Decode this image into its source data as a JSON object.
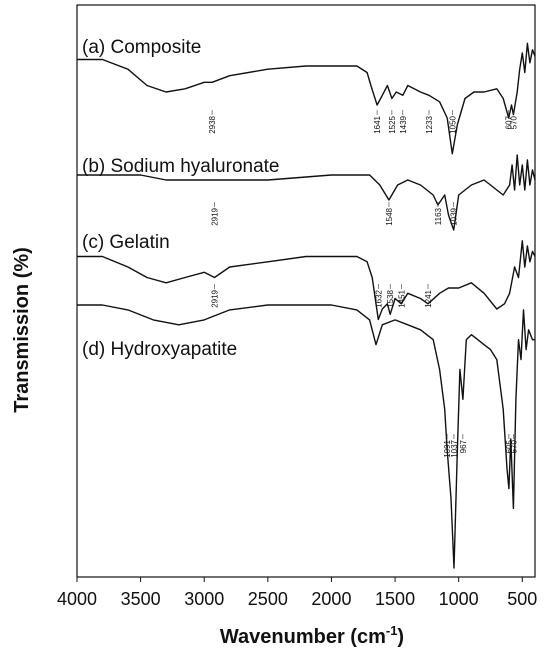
{
  "chart_data": {
    "type": "line",
    "xlabel": "Wavenumber (cm",
    "xlabel_sup": "-1",
    "xlabel_close": ")",
    "ylabel": "Transmission (%)",
    "x_ticks": [
      "4000",
      "3500",
      "3000",
      "2500",
      "2000",
      "1500",
      "1000",
      "500"
    ],
    "xlim": [
      4000,
      400
    ],
    "x_reversed": true,
    "y_ticks_shown": false,
    "grid": false,
    "legend": "none",
    "series": [
      {
        "name": "(a) Composite",
        "peaks": [
          "2938",
          "1641",
          "1525",
          "1439",
          "1233",
          "1050",
          "607",
          "570"
        ],
        "peak_positions": [
          2938,
          1641,
          1525,
          1439,
          1233,
          1050,
          607,
          570
        ],
        "points": [
          [
            4000,
            0.84
          ],
          [
            3800,
            0.84
          ],
          [
            3600,
            0.81
          ],
          [
            3450,
            0.76
          ],
          [
            3300,
            0.74
          ],
          [
            3150,
            0.75
          ],
          [
            3000,
            0.77
          ],
          [
            2938,
            0.77
          ],
          [
            2800,
            0.79
          ],
          [
            2500,
            0.81
          ],
          [
            2200,
            0.82
          ],
          [
            2000,
            0.82
          ],
          [
            1800,
            0.82
          ],
          [
            1720,
            0.8
          ],
          [
            1690,
            0.76
          ],
          [
            1641,
            0.7
          ],
          [
            1600,
            0.73
          ],
          [
            1560,
            0.76
          ],
          [
            1525,
            0.72
          ],
          [
            1490,
            0.74
          ],
          [
            1439,
            0.73
          ],
          [
            1400,
            0.76
          ],
          [
            1300,
            0.74
          ],
          [
            1233,
            0.73
          ],
          [
            1150,
            0.71
          ],
          [
            1090,
            0.66
          ],
          [
            1050,
            0.55
          ],
          [
            1010,
            0.64
          ],
          [
            950,
            0.72
          ],
          [
            880,
            0.74
          ],
          [
            800,
            0.74
          ],
          [
            700,
            0.75
          ],
          [
            650,
            0.72
          ],
          [
            607,
            0.66
          ],
          [
            585,
            0.7
          ],
          [
            570,
            0.67
          ],
          [
            540,
            0.74
          ],
          [
            520,
            0.81
          ],
          [
            500,
            0.86
          ],
          [
            480,
            0.8
          ],
          [
            460,
            0.89
          ],
          [
            440,
            0.83
          ],
          [
            420,
            0.87
          ],
          [
            400,
            0.85
          ]
        ]
      },
      {
        "name": "(b) Sodium hyaluronate",
        "peaks": [
          "2919",
          "1548",
          "1163",
          "1039"
        ],
        "peak_positions": [
          2919,
          1548,
          1163,
          1039
        ],
        "points": [
          [
            4000,
            0.51
          ],
          [
            3500,
            0.51
          ],
          [
            3300,
            0.5
          ],
          [
            2919,
            0.5
          ],
          [
            2500,
            0.5
          ],
          [
            2000,
            0.51
          ],
          [
            1700,
            0.51
          ],
          [
            1620,
            0.49
          ],
          [
            1548,
            0.46
          ],
          [
            1480,
            0.49
          ],
          [
            1400,
            0.5
          ],
          [
            1300,
            0.49
          ],
          [
            1200,
            0.47
          ],
          [
            1163,
            0.45
          ],
          [
            1110,
            0.47
          ],
          [
            1080,
            0.43
          ],
          [
            1039,
            0.4
          ],
          [
            1000,
            0.47
          ],
          [
            900,
            0.49
          ],
          [
            800,
            0.5
          ],
          [
            700,
            0.48
          ],
          [
            650,
            0.47
          ],
          [
            600,
            0.49
          ],
          [
            580,
            0.53
          ],
          [
            560,
            0.48
          ],
          [
            540,
            0.55
          ],
          [
            520,
            0.49
          ],
          [
            500,
            0.53
          ],
          [
            480,
            0.48
          ],
          [
            460,
            0.54
          ],
          [
            440,
            0.49
          ],
          [
            420,
            0.52
          ],
          [
            400,
            0.5
          ]
        ]
      },
      {
        "name": "(c) Gelatin",
        "peaks": [
          "2919",
          "1632",
          "1538",
          "1451",
          "1241"
        ],
        "peak_positions": [
          2919,
          1632,
          1538,
          1451,
          1241
        ],
        "points": [
          [
            4000,
            0.42
          ],
          [
            3800,
            0.42
          ],
          [
            3600,
            0.4
          ],
          [
            3450,
            0.38
          ],
          [
            3300,
            0.37
          ],
          [
            3150,
            0.38
          ],
          [
            3000,
            0.39
          ],
          [
            2919,
            0.38
          ],
          [
            2800,
            0.4
          ],
          [
            2500,
            0.41
          ],
          [
            2200,
            0.42
          ],
          [
            2000,
            0.42
          ],
          [
            1800,
            0.42
          ],
          [
            1720,
            0.41
          ],
          [
            1680,
            0.38
          ],
          [
            1632,
            0.3
          ],
          [
            1600,
            0.32
          ],
          [
            1560,
            0.33
          ],
          [
            1538,
            0.31
          ],
          [
            1500,
            0.34
          ],
          [
            1451,
            0.33
          ],
          [
            1400,
            0.35
          ],
          [
            1300,
            0.34
          ],
          [
            1241,
            0.33
          ],
          [
            1150,
            0.35
          ],
          [
            1080,
            0.36
          ],
          [
            1000,
            0.36
          ],
          [
            900,
            0.37
          ],
          [
            800,
            0.35
          ],
          [
            700,
            0.32
          ],
          [
            640,
            0.33
          ],
          [
            600,
            0.35
          ],
          [
            560,
            0.4
          ],
          [
            530,
            0.38
          ],
          [
            500,
            0.45
          ],
          [
            480,
            0.4
          ],
          [
            460,
            0.44
          ],
          [
            440,
            0.41
          ],
          [
            420,
            0.43
          ],
          [
            400,
            0.42
          ]
        ]
      },
      {
        "name": "(d) Hydroxyapatite",
        "peaks": [
          "1091",
          "1037",
          "967",
          "605",
          "570"
        ],
        "peak_positions": [
          1091,
          1037,
          967,
          605,
          570
        ],
        "points": [
          [
            4000,
            0.265
          ],
          [
            3800,
            0.265
          ],
          [
            3600,
            0.26
          ],
          [
            3400,
            0.25
          ],
          [
            3200,
            0.245
          ],
          [
            3000,
            0.25
          ],
          [
            2800,
            0.26
          ],
          [
            2500,
            0.265
          ],
          [
            2000,
            0.265
          ],
          [
            1800,
            0.26
          ],
          [
            1700,
            0.25
          ],
          [
            1650,
            0.225
          ],
          [
            1600,
            0.245
          ],
          [
            1500,
            0.25
          ],
          [
            1400,
            0.245
          ],
          [
            1300,
            0.24
          ],
          [
            1200,
            0.23
          ],
          [
            1150,
            0.2
          ],
          [
            1110,
            0.16
          ],
          [
            1091,
            0.12
          ],
          [
            1060,
            0.07
          ],
          [
            1037,
            0.0
          ],
          [
            1010,
            0.12
          ],
          [
            990,
            0.2
          ],
          [
            967,
            0.17
          ],
          [
            940,
            0.23
          ],
          [
            900,
            0.235
          ],
          [
            850,
            0.23
          ],
          [
            800,
            0.225
          ],
          [
            750,
            0.22
          ],
          [
            700,
            0.21
          ],
          [
            650,
            0.16
          ],
          [
            620,
            0.1
          ],
          [
            605,
            0.08
          ],
          [
            590,
            0.13
          ],
          [
            570,
            0.06
          ],
          [
            550,
            0.17
          ],
          [
            530,
            0.23
          ],
          [
            510,
            0.21
          ],
          [
            490,
            0.26
          ],
          [
            470,
            0.22
          ],
          [
            450,
            0.24
          ],
          [
            420,
            0.23
          ],
          [
            400,
            0.23
          ]
        ]
      }
    ]
  }
}
